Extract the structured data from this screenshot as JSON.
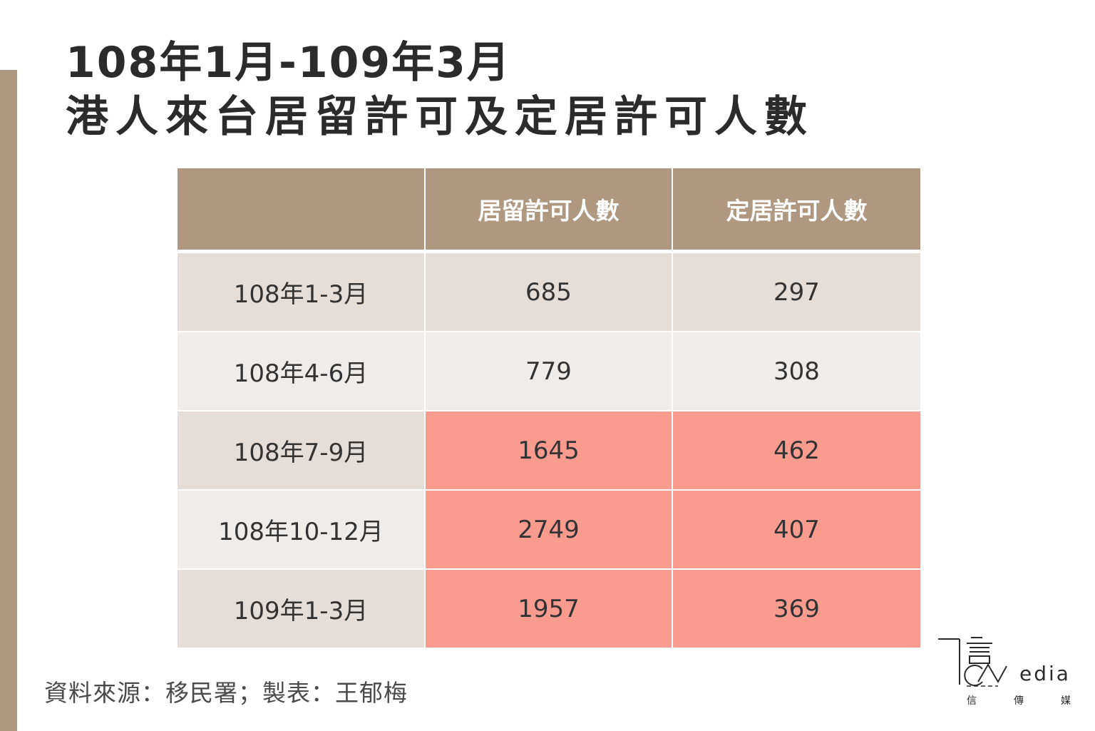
{
  "title": {
    "line1": "108年1月-109年3月",
    "line2": "港人來台居留許可及定居許可人數"
  },
  "colors": {
    "header": "#b09780",
    "row_odd": "#e5ddd8",
    "row_even": "#f0ecea",
    "highlight": "#f99c8f",
    "side_bar": "#b09780"
  },
  "chart_data": {
    "type": "table",
    "title": "108年1月-109年3月 港人來台居留許可及定居許可人數",
    "columns": [
      "",
      "居留許可人數",
      "定居許可人數"
    ],
    "rows": [
      {
        "period": "108年1-3月",
        "residence": "685",
        "settlement": "297",
        "highlight": false
      },
      {
        "period": "108年4-6月",
        "residence": "779",
        "settlement": "308",
        "highlight": false
      },
      {
        "period": "108年7-9月",
        "residence": "1645",
        "settlement": "462",
        "highlight": true
      },
      {
        "period": "108年10-12月",
        "residence": "2749",
        "settlement": "407",
        "highlight": true
      },
      {
        "period": "109年1-3月",
        "residence": "1957",
        "settlement": "369",
        "highlight": true
      }
    ]
  },
  "source": "資料來源：移民署；製表：王郁梅",
  "logo": {
    "name": "信傳媒 CM Media logo",
    "text": "edia",
    "chinese": [
      "信",
      "傳",
      "媒"
    ]
  }
}
